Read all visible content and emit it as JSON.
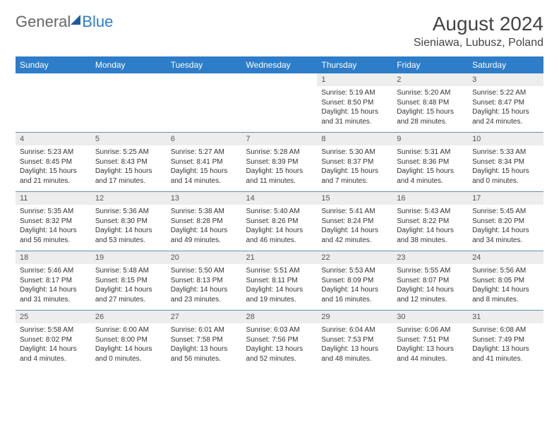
{
  "brand": {
    "text1": "General",
    "text2": "Blue",
    "brand_color": "#2d7dc9"
  },
  "title": "August 2024",
  "location": "Sieniawa, Lubusz, Poland",
  "day_headers": [
    "Sunday",
    "Monday",
    "Tuesday",
    "Wednesday",
    "Thursday",
    "Friday",
    "Saturday"
  ],
  "colors": {
    "header_bg": "#2d7dc9",
    "daynum_bg": "#ededed",
    "separator": "#6a8db3",
    "text": "#333333"
  },
  "weeks": [
    [
      null,
      null,
      null,
      null,
      {
        "n": "1",
        "sr": "5:19 AM",
        "ss": "8:50 PM",
        "dl": "15 hours and 31 minutes."
      },
      {
        "n": "2",
        "sr": "5:20 AM",
        "ss": "8:48 PM",
        "dl": "15 hours and 28 minutes."
      },
      {
        "n": "3",
        "sr": "5:22 AM",
        "ss": "8:47 PM",
        "dl": "15 hours and 24 minutes."
      }
    ],
    [
      {
        "n": "4",
        "sr": "5:23 AM",
        "ss": "8:45 PM",
        "dl": "15 hours and 21 minutes."
      },
      {
        "n": "5",
        "sr": "5:25 AM",
        "ss": "8:43 PM",
        "dl": "15 hours and 17 minutes."
      },
      {
        "n": "6",
        "sr": "5:27 AM",
        "ss": "8:41 PM",
        "dl": "15 hours and 14 minutes."
      },
      {
        "n": "7",
        "sr": "5:28 AM",
        "ss": "8:39 PM",
        "dl": "15 hours and 11 minutes."
      },
      {
        "n": "8",
        "sr": "5:30 AM",
        "ss": "8:37 PM",
        "dl": "15 hours and 7 minutes."
      },
      {
        "n": "9",
        "sr": "5:31 AM",
        "ss": "8:36 PM",
        "dl": "15 hours and 4 minutes."
      },
      {
        "n": "10",
        "sr": "5:33 AM",
        "ss": "8:34 PM",
        "dl": "15 hours and 0 minutes."
      }
    ],
    [
      {
        "n": "11",
        "sr": "5:35 AM",
        "ss": "8:32 PM",
        "dl": "14 hours and 56 minutes."
      },
      {
        "n": "12",
        "sr": "5:36 AM",
        "ss": "8:30 PM",
        "dl": "14 hours and 53 minutes."
      },
      {
        "n": "13",
        "sr": "5:38 AM",
        "ss": "8:28 PM",
        "dl": "14 hours and 49 minutes."
      },
      {
        "n": "14",
        "sr": "5:40 AM",
        "ss": "8:26 PM",
        "dl": "14 hours and 46 minutes."
      },
      {
        "n": "15",
        "sr": "5:41 AM",
        "ss": "8:24 PM",
        "dl": "14 hours and 42 minutes."
      },
      {
        "n": "16",
        "sr": "5:43 AM",
        "ss": "8:22 PM",
        "dl": "14 hours and 38 minutes."
      },
      {
        "n": "17",
        "sr": "5:45 AM",
        "ss": "8:20 PM",
        "dl": "14 hours and 34 minutes."
      }
    ],
    [
      {
        "n": "18",
        "sr": "5:46 AM",
        "ss": "8:17 PM",
        "dl": "14 hours and 31 minutes."
      },
      {
        "n": "19",
        "sr": "5:48 AM",
        "ss": "8:15 PM",
        "dl": "14 hours and 27 minutes."
      },
      {
        "n": "20",
        "sr": "5:50 AM",
        "ss": "8:13 PM",
        "dl": "14 hours and 23 minutes."
      },
      {
        "n": "21",
        "sr": "5:51 AM",
        "ss": "8:11 PM",
        "dl": "14 hours and 19 minutes."
      },
      {
        "n": "22",
        "sr": "5:53 AM",
        "ss": "8:09 PM",
        "dl": "14 hours and 16 minutes."
      },
      {
        "n": "23",
        "sr": "5:55 AM",
        "ss": "8:07 PM",
        "dl": "14 hours and 12 minutes."
      },
      {
        "n": "24",
        "sr": "5:56 AM",
        "ss": "8:05 PM",
        "dl": "14 hours and 8 minutes."
      }
    ],
    [
      {
        "n": "25",
        "sr": "5:58 AM",
        "ss": "8:02 PM",
        "dl": "14 hours and 4 minutes."
      },
      {
        "n": "26",
        "sr": "6:00 AM",
        "ss": "8:00 PM",
        "dl": "14 hours and 0 minutes."
      },
      {
        "n": "27",
        "sr": "6:01 AM",
        "ss": "7:58 PM",
        "dl": "13 hours and 56 minutes."
      },
      {
        "n": "28",
        "sr": "6:03 AM",
        "ss": "7:56 PM",
        "dl": "13 hours and 52 minutes."
      },
      {
        "n": "29",
        "sr": "6:04 AM",
        "ss": "7:53 PM",
        "dl": "13 hours and 48 minutes."
      },
      {
        "n": "30",
        "sr": "6:06 AM",
        "ss": "7:51 PM",
        "dl": "13 hours and 44 minutes."
      },
      {
        "n": "31",
        "sr": "6:08 AM",
        "ss": "7:49 PM",
        "dl": "13 hours and 41 minutes."
      }
    ]
  ],
  "labels": {
    "sunrise": "Sunrise: ",
    "sunset": "Sunset: ",
    "daylight": "Daylight: "
  }
}
